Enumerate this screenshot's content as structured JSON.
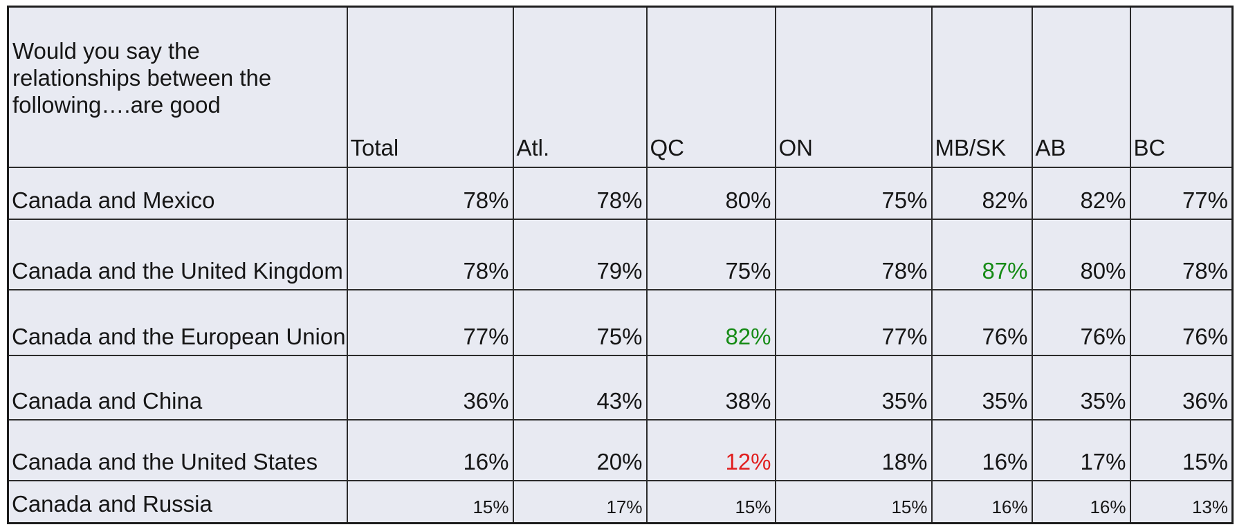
{
  "table": {
    "question": "Would you say the relationships between the following….are good",
    "columns": [
      "Total",
      "Atl.",
      "QC",
      "ON",
      "MB/SK",
      "AB",
      "BC"
    ],
    "rows": [
      {
        "label": "Canada and Mexico",
        "values": [
          "78%",
          "78%",
          "80%",
          "75%",
          "82%",
          "82%",
          "77%"
        ],
        "highlight": null
      },
      {
        "label": "Canada and the United Kingdom",
        "values": [
          "78%",
          "79%",
          "75%",
          "78%",
          "87%",
          "80%",
          "78%"
        ],
        "highlight": {
          "index": 4,
          "color": "green"
        }
      },
      {
        "label": "Canada and the European Union",
        "values": [
          "77%",
          "75%",
          "82%",
          "77%",
          "76%",
          "76%",
          "76%"
        ],
        "highlight": {
          "index": 2,
          "color": "green"
        }
      },
      {
        "label": "Canada and China",
        "values": [
          "36%",
          "43%",
          "38%",
          "35%",
          "35%",
          "35%",
          "36%"
        ],
        "highlight": null
      },
      {
        "label": "Canada and the United States",
        "values": [
          "16%",
          "20%",
          "12%",
          "18%",
          "16%",
          "17%",
          "15%"
        ],
        "highlight": {
          "index": 2,
          "color": "red"
        }
      },
      {
        "label": "Canada and Russia",
        "values": [
          "15%",
          "17%",
          "15%",
          "15%",
          "16%",
          "16%",
          "13%"
        ],
        "highlight": null
      }
    ],
    "colors": {
      "green": "#168b16",
      "red": "#e11f1f",
      "cell_background": "#e8eaf2",
      "grid_line": "#2b2b2b",
      "text": "#161616"
    }
  },
  "chart_data": {
    "type": "table",
    "title": "Would you say the relationships between the following….are good",
    "categories": [
      "Total",
      "Atl.",
      "QC",
      "ON",
      "MB/SK",
      "AB",
      "BC"
    ],
    "series": [
      {
        "name": "Canada and Mexico",
        "values": [
          78,
          78,
          80,
          75,
          82,
          82,
          77
        ]
      },
      {
        "name": "Canada and the United Kingdom",
        "values": [
          78,
          79,
          75,
          78,
          87,
          80,
          78
        ]
      },
      {
        "name": "Canada and the European Union",
        "values": [
          77,
          75,
          82,
          77,
          76,
          76,
          76
        ]
      },
      {
        "name": "Canada and China",
        "values": [
          36,
          43,
          38,
          35,
          35,
          35,
          36
        ]
      },
      {
        "name": "Canada and the United States",
        "values": [
          16,
          20,
          12,
          18,
          16,
          17,
          15
        ]
      },
      {
        "name": "Canada and Russia",
        "values": [
          15,
          17,
          15,
          15,
          16,
          16,
          13
        ]
      }
    ],
    "unit": "%",
    "annotations": [
      {
        "row": "Canada and the United Kingdom",
        "column": "MB/SK",
        "value": 87,
        "color": "green"
      },
      {
        "row": "Canada and the European Union",
        "column": "QC",
        "value": 82,
        "color": "green"
      },
      {
        "row": "Canada and the United States",
        "column": "QC",
        "value": 12,
        "color": "red"
      }
    ]
  }
}
